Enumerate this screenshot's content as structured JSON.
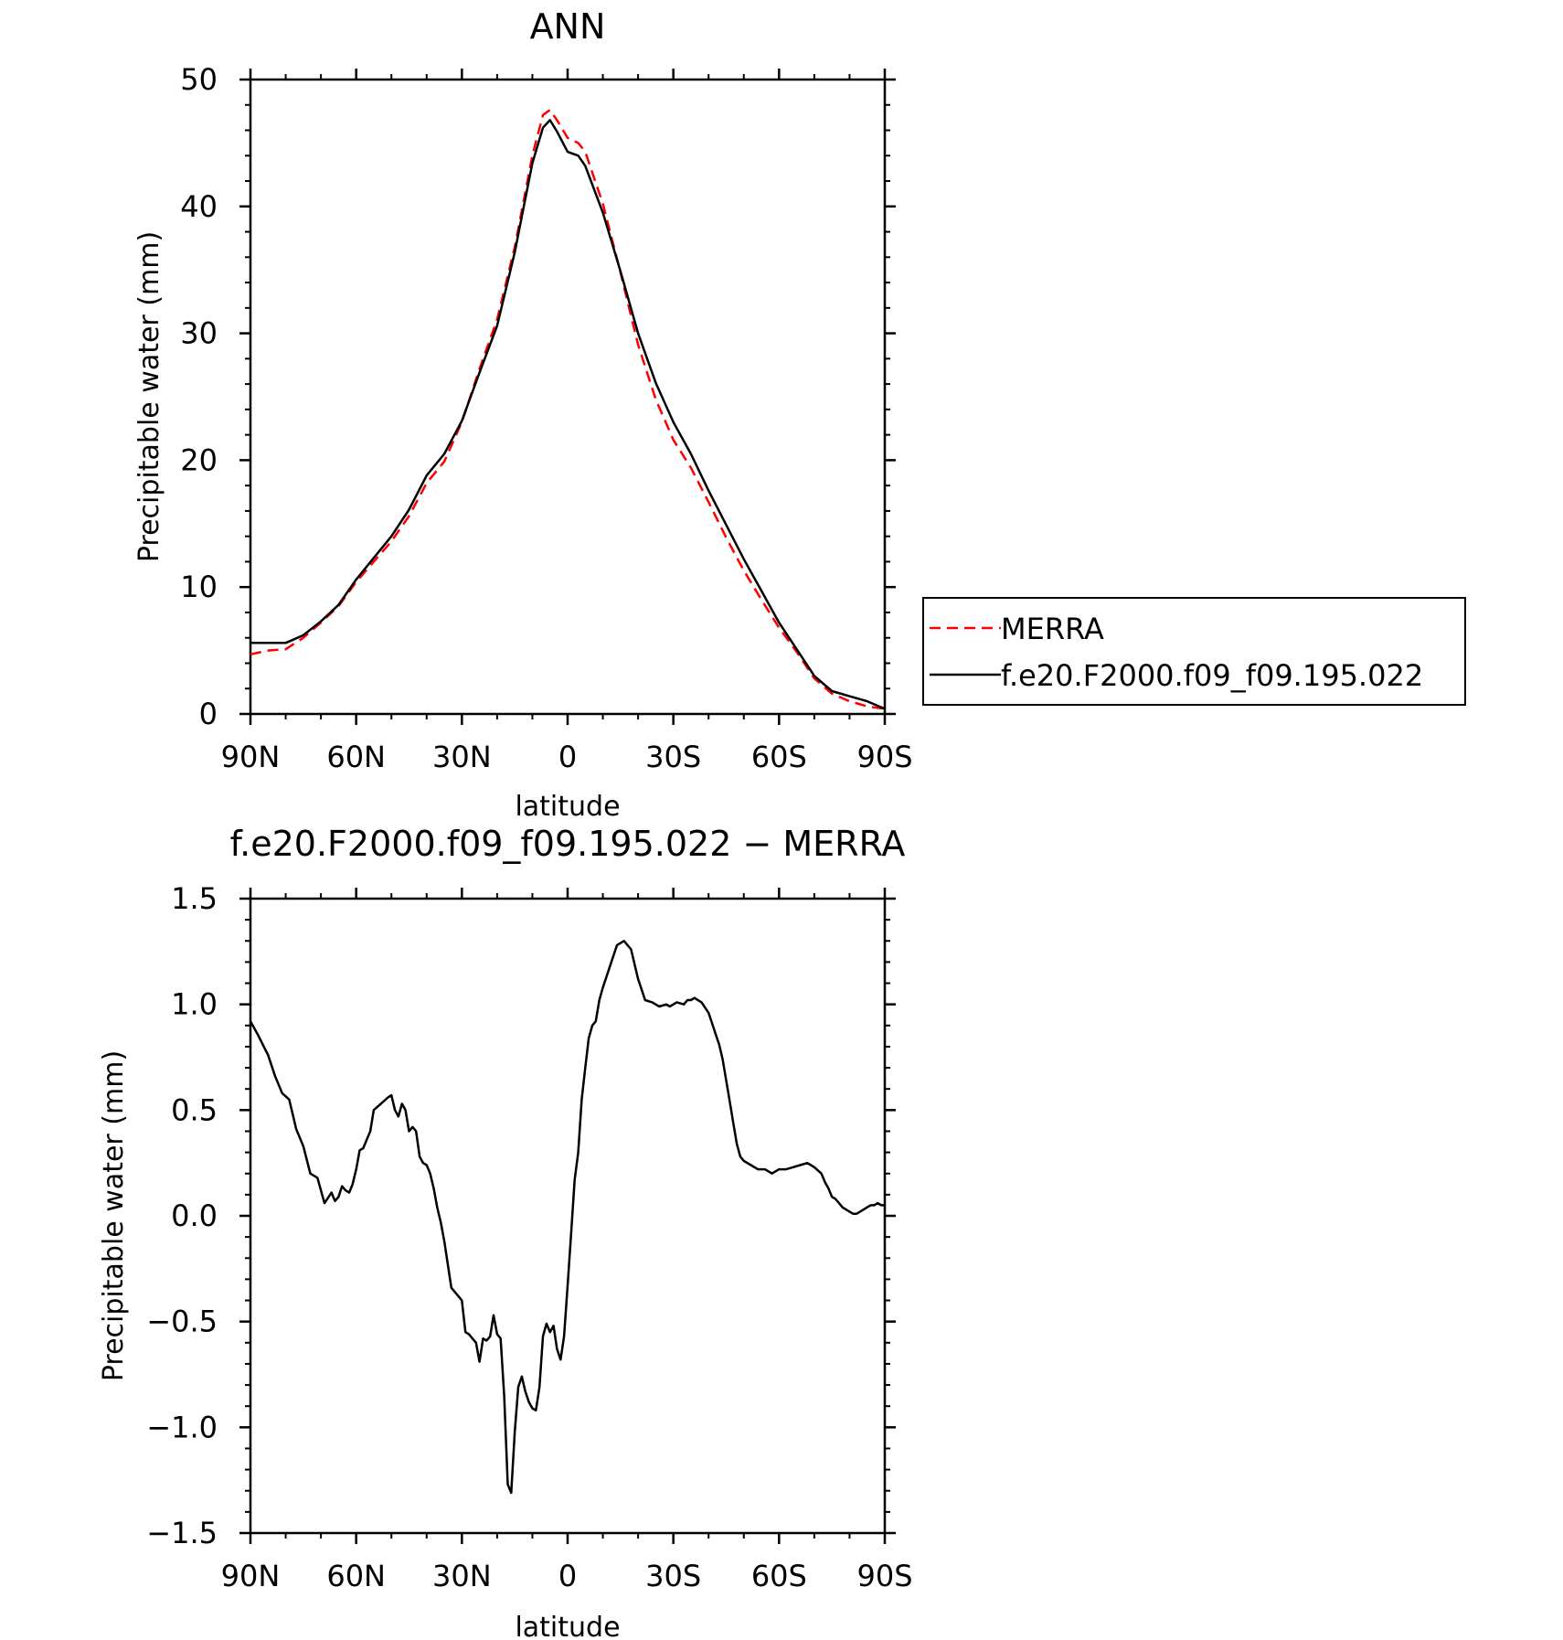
{
  "chart_data": [
    {
      "type": "line",
      "title": "ANN",
      "xlabel": "latitude",
      "ylabel": "Precipitable water (mm)",
      "xlim": [
        90,
        -90
      ],
      "ylim": [
        0,
        50
      ],
      "x_ticks": [
        {
          "value": 90,
          "label": "90N"
        },
        {
          "value": 60,
          "label": "60N"
        },
        {
          "value": 30,
          "label": "30N"
        },
        {
          "value": 0,
          "label": "0"
        },
        {
          "value": -30,
          "label": "30S"
        },
        {
          "value": -60,
          "label": "60S"
        },
        {
          "value": -90,
          "label": "90S"
        }
      ],
      "y_ticks": [
        {
          "value": 0,
          "label": "0"
        },
        {
          "value": 10,
          "label": "10"
        },
        {
          "value": 20,
          "label": "20"
        },
        {
          "value": 30,
          "label": "30"
        },
        {
          "value": 40,
          "label": "40"
        },
        {
          "value": 50,
          "label": "50"
        }
      ],
      "legend": "right",
      "grid": false,
      "series": [
        {
          "name": "MERRA",
          "color": "#ff0000",
          "dash": true,
          "x": [
            90,
            85,
            80,
            75,
            70,
            65,
            60,
            55,
            50,
            45,
            40,
            35,
            30,
            25,
            20,
            15,
            10,
            7,
            5,
            3,
            0,
            -3,
            -5,
            -10,
            -15,
            -20,
            -25,
            -30,
            -35,
            -40,
            -45,
            -50,
            -55,
            -60,
            -65,
            -70,
            -75,
            -80,
            -85,
            -90
          ],
          "y": [
            4.7,
            5.0,
            5.1,
            6.0,
            7.2,
            8.5,
            10.4,
            12.0,
            13.6,
            15.6,
            18.2,
            19.9,
            23.0,
            27.2,
            31.1,
            36.8,
            44.0,
            47.2,
            47.6,
            46.8,
            45.4,
            45.0,
            44.3,
            40.2,
            34.8,
            29.1,
            24.8,
            21.6,
            19.4,
            16.7,
            13.9,
            11.3,
            9.0,
            6.8,
            4.9,
            2.8,
            1.6,
            1.0,
            0.6,
            0.4
          ]
        },
        {
          "name": "f.e20.F2000.f09_f09.195.022",
          "color": "#000000",
          "dash": false,
          "x": [
            90,
            85,
            80,
            75,
            70,
            65,
            60,
            55,
            50,
            45,
            40,
            35,
            30,
            25,
            20,
            15,
            10,
            7,
            5,
            3,
            0,
            -3,
            -5,
            -10,
            -15,
            -20,
            -25,
            -30,
            -35,
            -40,
            -45,
            -50,
            -55,
            -60,
            -65,
            -70,
            -75,
            -80,
            -85,
            -90
          ],
          "y": [
            5.6,
            5.6,
            5.6,
            6.2,
            7.3,
            8.6,
            10.6,
            12.3,
            14.0,
            16.1,
            18.8,
            20.5,
            23.1,
            26.9,
            30.6,
            36.4,
            43.4,
            46.2,
            46.8,
            45.9,
            44.3,
            44.0,
            43.2,
            39.5,
            34.9,
            30.0,
            26.1,
            23.0,
            20.5,
            17.6,
            14.9,
            12.2,
            9.7,
            7.2,
            5.1,
            3.0,
            1.8,
            1.4,
            1.0,
            0.4
          ]
        }
      ]
    },
    {
      "type": "line",
      "title": "f.e20.F2000.f09_f09.195.022 − MERRA",
      "xlabel": "latitude",
      "ylabel": "Precipitable water (mm)",
      "xlim": [
        90,
        -90
      ],
      "ylim": [
        -1.5,
        1.5
      ],
      "x_ticks": [
        {
          "value": 90,
          "label": "90N"
        },
        {
          "value": 60,
          "label": "60N"
        },
        {
          "value": 30,
          "label": "30N"
        },
        {
          "value": 0,
          "label": "0"
        },
        {
          "value": -30,
          "label": "30S"
        },
        {
          "value": -60,
          "label": "60S"
        },
        {
          "value": -90,
          "label": "90S"
        }
      ],
      "y_ticks": [
        {
          "value": -1.5,
          "label": "−1.5"
        },
        {
          "value": -1.0,
          "label": "−1.0"
        },
        {
          "value": -0.5,
          "label": "−0.5"
        },
        {
          "value": 0.0,
          "label": "0.0"
        },
        {
          "value": 0.5,
          "label": "0.5"
        },
        {
          "value": 1.0,
          "label": "1.0"
        },
        {
          "value": 1.5,
          "label": "1.5"
        }
      ],
      "grid": false,
      "series": [
        {
          "color": "#000000",
          "dash": false,
          "x": [
            90,
            88,
            85,
            83,
            81,
            79,
            77,
            75,
            73,
            71,
            69,
            67,
            66,
            65,
            64,
            63,
            62,
            61,
            60,
            59,
            58,
            57,
            56,
            55,
            53,
            51,
            50,
            49,
            48,
            47,
            46,
            45,
            44,
            43,
            42,
            41,
            40,
            39,
            38,
            37,
            36,
            35,
            33,
            31,
            30,
            29,
            28,
            27,
            26,
            25,
            24,
            23,
            22,
            21,
            20,
            19,
            18,
            17,
            16,
            15,
            14,
            13,
            12,
            11,
            10,
            9,
            8,
            7,
            6,
            5,
            4,
            3,
            2,
            1,
            0,
            -1,
            -2,
            -3,
            -4,
            -5,
            -6,
            -7,
            -8,
            -9,
            -10,
            -12,
            -14,
            -16,
            -18,
            -20,
            -22,
            -24,
            -26,
            -28,
            -29,
            -31,
            -33,
            -34,
            -35,
            -36,
            -38,
            -40,
            -41,
            -42,
            -43,
            -44,
            -45,
            -46,
            -47,
            -48,
            -49,
            -50,
            -52,
            -54,
            -56,
            -58,
            -60,
            -62,
            -64,
            -66,
            -68,
            -70,
            -72,
            -73,
            -74,
            -75,
            -76,
            -77,
            -78,
            -79,
            -80,
            -81,
            -82,
            -83,
            -84,
            -85,
            -86,
            -87,
            -88,
            -89,
            -90
          ],
          "y": [
            0.92,
            0.86,
            0.76,
            0.66,
            0.58,
            0.55,
            0.41,
            0.33,
            0.2,
            0.18,
            0.06,
            0.11,
            0.07,
            0.09,
            0.14,
            0.12,
            0.11,
            0.15,
            0.22,
            0.31,
            0.32,
            0.36,
            0.4,
            0.5,
            0.53,
            0.56,
            0.57,
            0.5,
            0.47,
            0.53,
            0.5,
            0.4,
            0.42,
            0.4,
            0.28,
            0.25,
            0.24,
            0.2,
            0.13,
            0.04,
            -0.03,
            -0.12,
            -0.34,
            -0.38,
            -0.4,
            -0.55,
            -0.56,
            -0.58,
            -0.6,
            -0.69,
            -0.58,
            -0.59,
            -0.57,
            -0.47,
            -0.56,
            -0.58,
            -0.85,
            -1.27,
            -1.31,
            -1.02,
            -0.81,
            -0.76,
            -0.83,
            -0.88,
            -0.91,
            -0.92,
            -0.81,
            -0.57,
            -0.51,
            -0.55,
            -0.52,
            -0.63,
            -0.68,
            -0.57,
            -0.33,
            -0.08,
            0.17,
            0.3,
            0.55,
            0.7,
            0.84,
            0.9,
            0.92,
            1.02,
            1.08,
            1.18,
            1.28,
            1.3,
            1.26,
            1.12,
            1.02,
            1.01,
            0.99,
            1.0,
            0.99,
            1.01,
            1.0,
            1.02,
            1.02,
            1.03,
            1.01,
            0.96,
            0.91,
            0.86,
            0.81,
            0.74,
            0.64,
            0.54,
            0.44,
            0.34,
            0.28,
            0.26,
            0.24,
            0.22,
            0.22,
            0.2,
            0.22,
            0.22,
            0.23,
            0.24,
            0.25,
            0.23,
            0.2,
            0.16,
            0.13,
            0.09,
            0.08,
            0.06,
            0.04,
            0.03,
            0.02,
            0.01,
            0.01,
            0.02,
            0.03,
            0.04,
            0.05,
            0.05,
            0.06,
            0.05,
            0.05
          ]
        }
      ]
    }
  ]
}
